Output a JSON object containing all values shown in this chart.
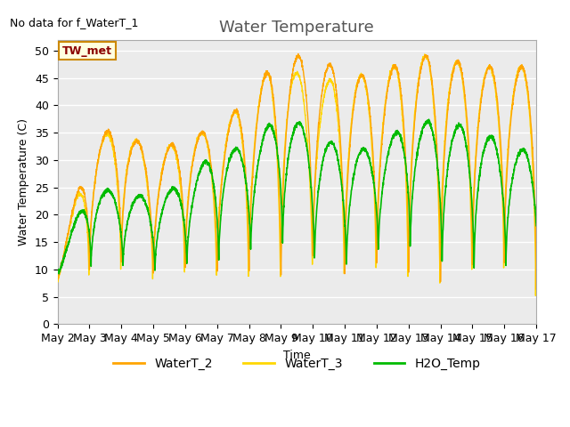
{
  "title": "Water Temperature",
  "xlabel": "Time",
  "ylabel": "Water Temperature (C)",
  "subtitle": "No data for f_WaterT_1",
  "annotation": "TW_met",
  "ylim": [
    0,
    52
  ],
  "yticks": [
    0,
    5,
    10,
    15,
    20,
    25,
    30,
    35,
    40,
    45,
    50
  ],
  "xticklabels": [
    "May 2",
    "May 3",
    "May 4",
    "May 5",
    "May 6",
    "May 7",
    "May 8",
    "May 9",
    "May 10",
    "May 11",
    "May 12",
    "May 13",
    "May 14",
    "May 15",
    "May 16",
    "May 17"
  ],
  "color_wt2": "#FFA500",
  "color_wt3": "#FFD700",
  "color_h2o": "#00BB00",
  "legend_entries": [
    "WaterT_2",
    "WaterT_3",
    "H2O_Temp"
  ],
  "bg_color": "#EBEBEB",
  "title_fontsize": 13,
  "label_fontsize": 9,
  "tick_fontsize": 9,
  "title_color": "#555555",
  "text_color": "#333333"
}
